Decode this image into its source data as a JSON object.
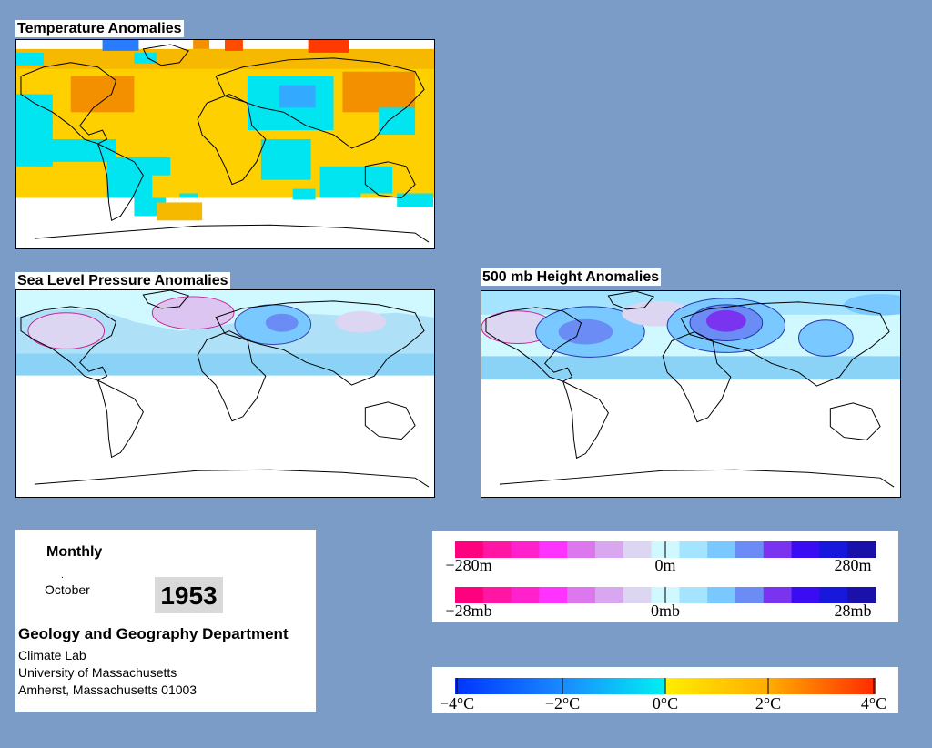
{
  "maps": [
    {
      "title": "Temperature Anomalies"
    },
    {
      "title": "Sea Level Pressure Anomalies"
    },
    {
      "title": "500 mb Height Anomalies"
    }
  ],
  "info": {
    "frequency": "Monthly",
    "dot": ".",
    "month": "October",
    "year": "1953",
    "department": "Geology and Geography Department",
    "lines": [
      "Climate Lab",
      "University of Massachusetts",
      "Amherst, Massachusetts 01003"
    ]
  },
  "legends": {
    "height": {
      "labels": [
        "−280m",
        "0m",
        "280m"
      ],
      "colors": [
        "#ff007f",
        "#ff16a4",
        "#ff22cc",
        "#ff33ff",
        "#dd77ee",
        "#d9a6f0",
        "#ddd6f3",
        "#cff8ff",
        "#a4e4ff",
        "#79c8ff",
        "#6a8cf4",
        "#7a33ee",
        "#3a0cf2",
        "#1818dd",
        "#1a10aa"
      ]
    },
    "pressure": {
      "labels": [
        "−28mb",
        "0mb",
        "28mb"
      ],
      "colors": [
        "#ff007f",
        "#ff16a4",
        "#ff22cc",
        "#ff33ff",
        "#dd77ee",
        "#d9a6f0",
        "#ddd6f3",
        "#cff8ff",
        "#a4e4ff",
        "#79c8ff",
        "#6a8cf4",
        "#7a33ee",
        "#3a0cf2",
        "#1818dd",
        "#1a10aa"
      ]
    },
    "temperature": {
      "labels": [
        "−4°C",
        "−2°C",
        "0°C",
        "2°C",
        "4°C"
      ]
    }
  },
  "colors": {
    "background": "#7b9cc6",
    "temp_cold": "#00e5f0",
    "temp_warm": "#ffdd00",
    "temp_hot": "#f39000",
    "pressure_low": "#aee0f7",
    "pressure_high": "#dcc5f0"
  }
}
